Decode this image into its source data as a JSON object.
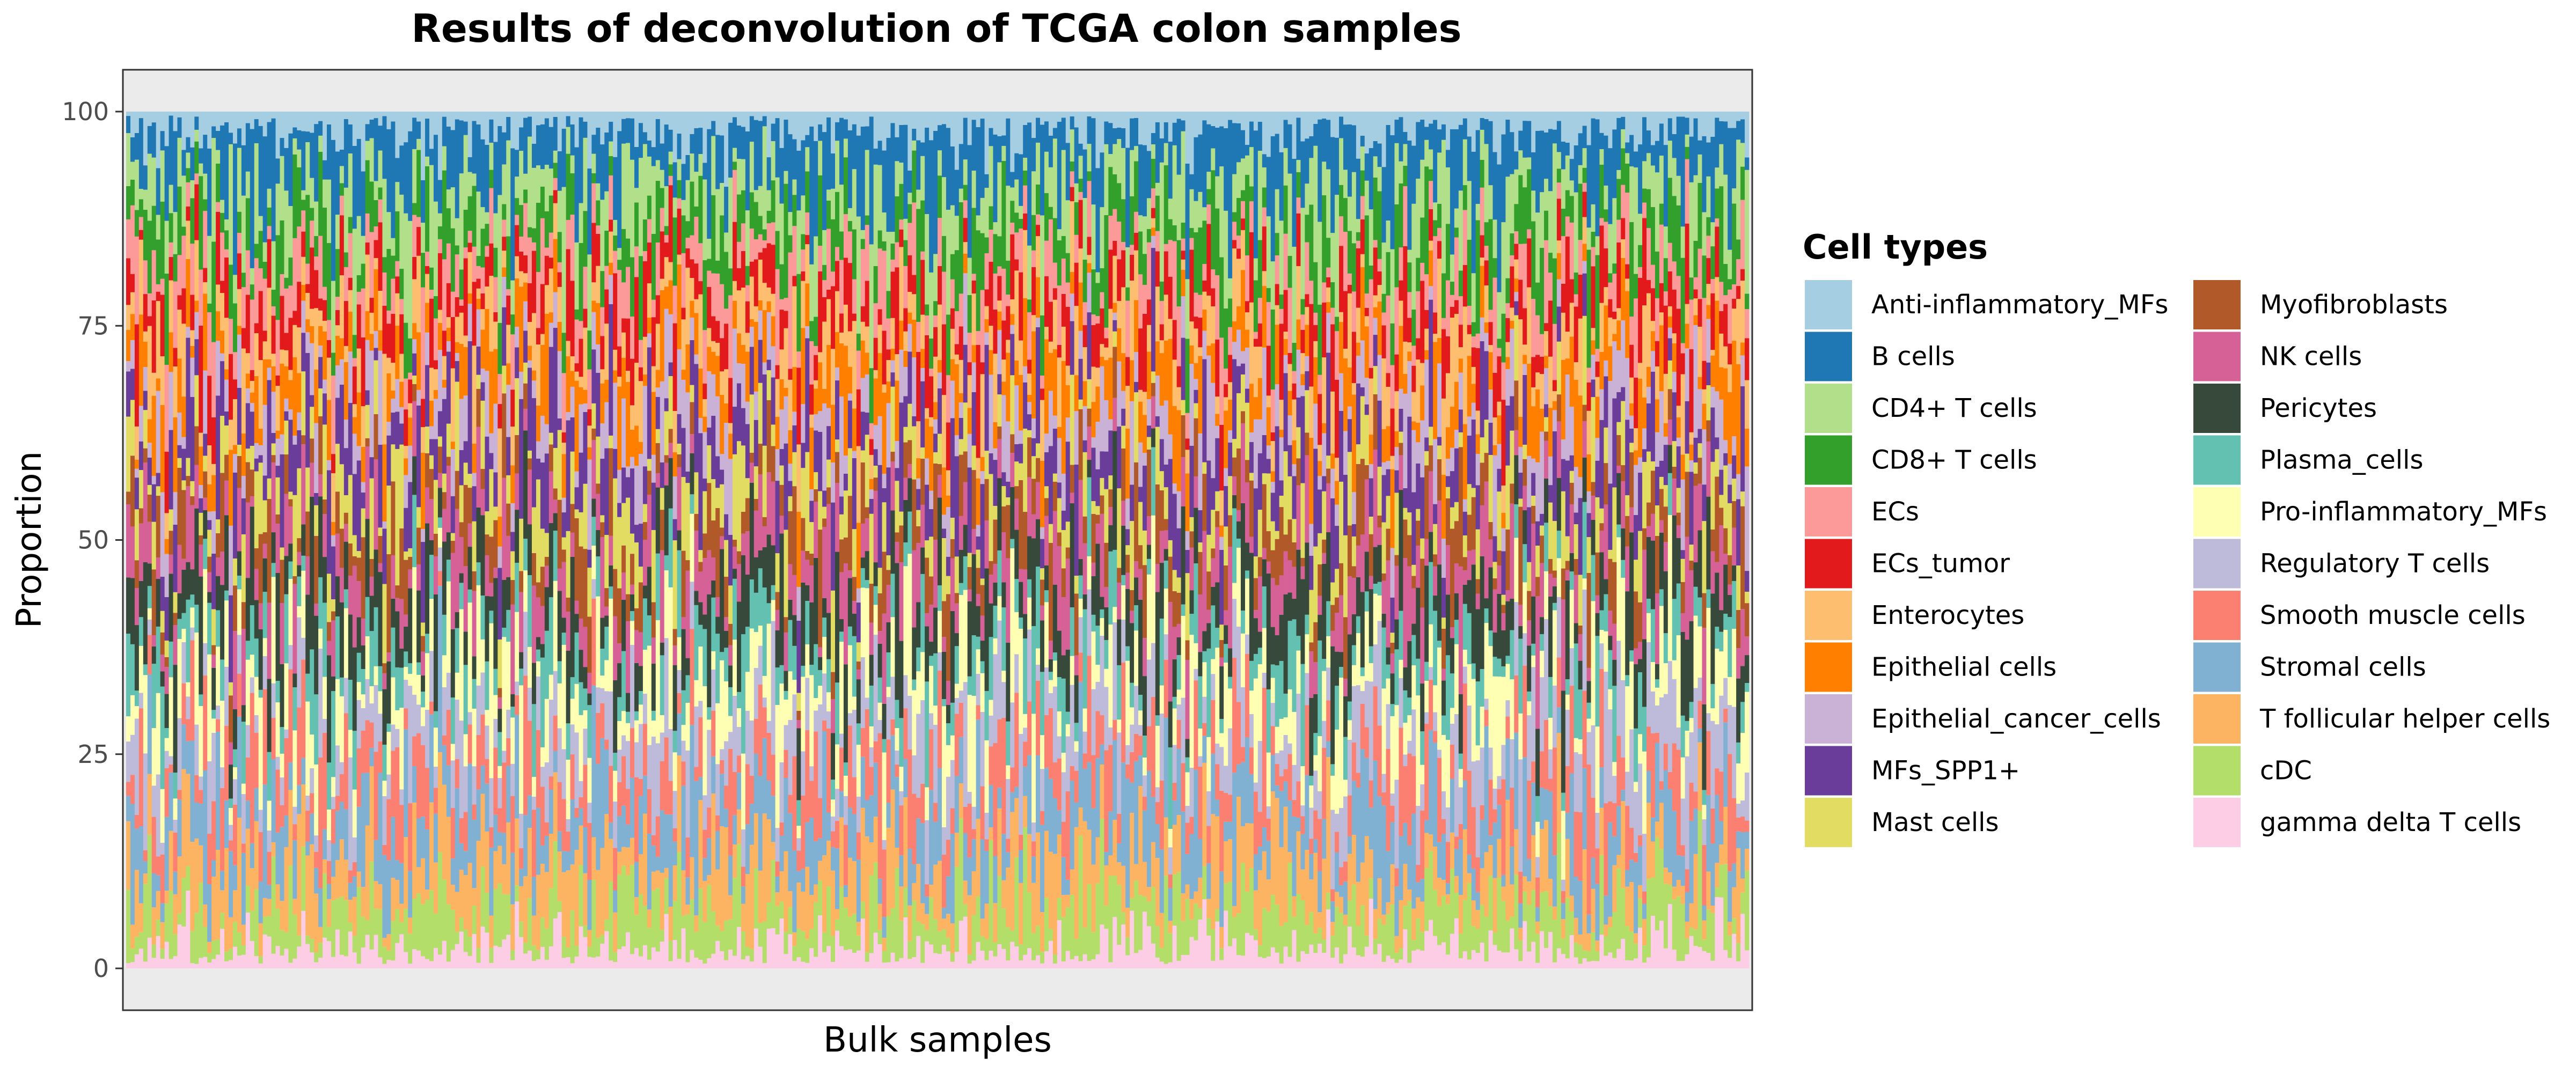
{
  "chart_data": {
    "type": "bar",
    "stacked": true,
    "title": "Results of deconvolution of TCGA colon samples",
    "xlabel": "Bulk samples",
    "ylabel": "Proportion",
    "ylim": [
      0,
      100
    ],
    "yticks": [
      0,
      25,
      50,
      75,
      100
    ],
    "x_tick_labels_shown": false,
    "n_samples": 380,
    "legend": {
      "title": "Cell types",
      "position": "right",
      "columns": 2
    },
    "series": [
      {
        "name": "Anti-inflammatory_MFs",
        "color": "#a6cee3",
        "mean_pct": 2.5
      },
      {
        "name": "B cells",
        "color": "#1f78b4",
        "mean_pct": 5.5
      },
      {
        "name": "CD4+ T cells",
        "color": "#b2df8a",
        "mean_pct": 5.0
      },
      {
        "name": "CD8+ T cells",
        "color": "#33a02c",
        "mean_pct": 4.5
      },
      {
        "name": "ECs",
        "color": "#fb9a99",
        "mean_pct": 3.5
      },
      {
        "name": "ECs_tumor",
        "color": "#e31a1c",
        "mean_pct": 4.0
      },
      {
        "name": "Enterocytes",
        "color": "#fdbf6f",
        "mean_pct": 4.0
      },
      {
        "name": "Epithelial cells",
        "color": "#ff7f00",
        "mean_pct": 4.0
      },
      {
        "name": "Epithelial_cancer_cells",
        "color": "#cab2d6",
        "mean_pct": 4.0
      },
      {
        "name": "MFs_SPP1+",
        "color": "#6a3d9a",
        "mean_pct": 5.0
      },
      {
        "name": "Mast cells",
        "color": "#e3dc62",
        "mean_pct": 4.0
      },
      {
        "name": "Myofibroblasts",
        "color": "#b15928",
        "mean_pct": 4.0
      },
      {
        "name": "NK cells",
        "color": "#d66196",
        "mean_pct": 4.5
      },
      {
        "name": "Pericytes",
        "color": "#36493a",
        "mean_pct": 5.5
      },
      {
        "name": "Plasma_cells",
        "color": "#63c1b1",
        "mean_pct": 4.0
      },
      {
        "name": "Pro-inflammatory_MFs",
        "color": "#ffffb3",
        "mean_pct": 5.5
      },
      {
        "name": "Regulatory T cells",
        "color": "#bebada",
        "mean_pct": 5.0
      },
      {
        "name": "Smooth muscle cells",
        "color": "#fb8072",
        "mean_pct": 5.0
      },
      {
        "name": "Stromal cells",
        "color": "#80b1d3",
        "mean_pct": 5.5
      },
      {
        "name": "T follicular helper cells",
        "color": "#fdb462",
        "mean_pct": 5.0
      },
      {
        "name": "cDC",
        "color": "#b3de69",
        "mean_pct": 4.5
      },
      {
        "name": "gamma delta T cells",
        "color": "#fccde5",
        "mean_pct": 2.5
      }
    ]
  }
}
